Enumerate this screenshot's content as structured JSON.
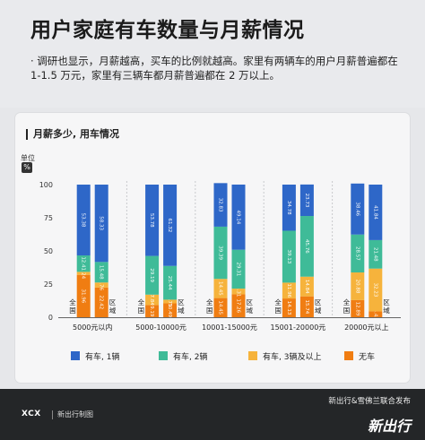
{
  "header": {
    "title": "用户家庭有车数量与月薪情况",
    "description": "· 调研也显示，月薪越高，买车的比例就越高。家里有两辆车的用户月薪普遍都在 1-1.5 万元，家里有三辆车都月薪普遍都在 2 万以上。"
  },
  "card": {
    "title": "月薪多少, 用车情况",
    "unit_label": "单位",
    "unit_symbol": "%"
  },
  "chart_data": {
    "type": "bar",
    "stacked": true,
    "title": "月薪多少, 用车情况",
    "ylim": [
      0,
      100
    ],
    "yticks": [
      0,
      25,
      50,
      75,
      100
    ],
    "categories": [
      "5000元以内",
      "5000-10000元",
      "10001-15000元",
      "15001-20000元",
      "20000元以上"
    ],
    "bar_labels": [
      "全国",
      "区域"
    ],
    "series": [
      {
        "name": "无车",
        "color": "#f07d12",
        "values": [
          [
            31.96,
            22.42
          ],
          [
            9.19,
            10.49
          ],
          [
            14.45,
            17.26
          ],
          [
            14.13,
            15.74
          ],
          [
            12.89,
            4.45
          ]
        ]
      },
      {
        "name": "有车, 3辆及以上",
        "color": "#f6b33c",
        "values": [
          [
            2.24,
            3.76
          ],
          [
            7.84,
            2.75
          ],
          [
            14.45,
            4.31
          ],
          [
            11.96,
            14.84
          ],
          [
            20.88,
            32.23
          ]
        ]
      },
      {
        "name": "有车, 2辆",
        "color": "#3fbb98",
        "values": [
          [
            12.41,
            15.48
          ],
          [
            29.19,
            25.44
          ],
          [
            39.39,
            29.31
          ],
          [
            39.13,
            45.76
          ],
          [
            28.57,
            21.48
          ]
        ]
      },
      {
        "name": "有车, 1辆",
        "color": "#2e67c8",
        "values": [
          [
            53.38,
            58.33
          ],
          [
            53.78,
            61.32
          ],
          [
            32.83,
            49.14
          ],
          [
            34.78,
            23.73
          ],
          [
            38.46,
            41.84
          ]
        ]
      }
    ],
    "legend": [
      "有车, 1辆",
      "有车, 2辆",
      "有车, 3辆及以上",
      "无车"
    ],
    "legend_position": "bottom"
  },
  "footer": {
    "logo": "XCX",
    "subtitle": "新出行制图",
    "publisher": "新出行&雪佛兰联合发布",
    "brand": "新出行"
  }
}
